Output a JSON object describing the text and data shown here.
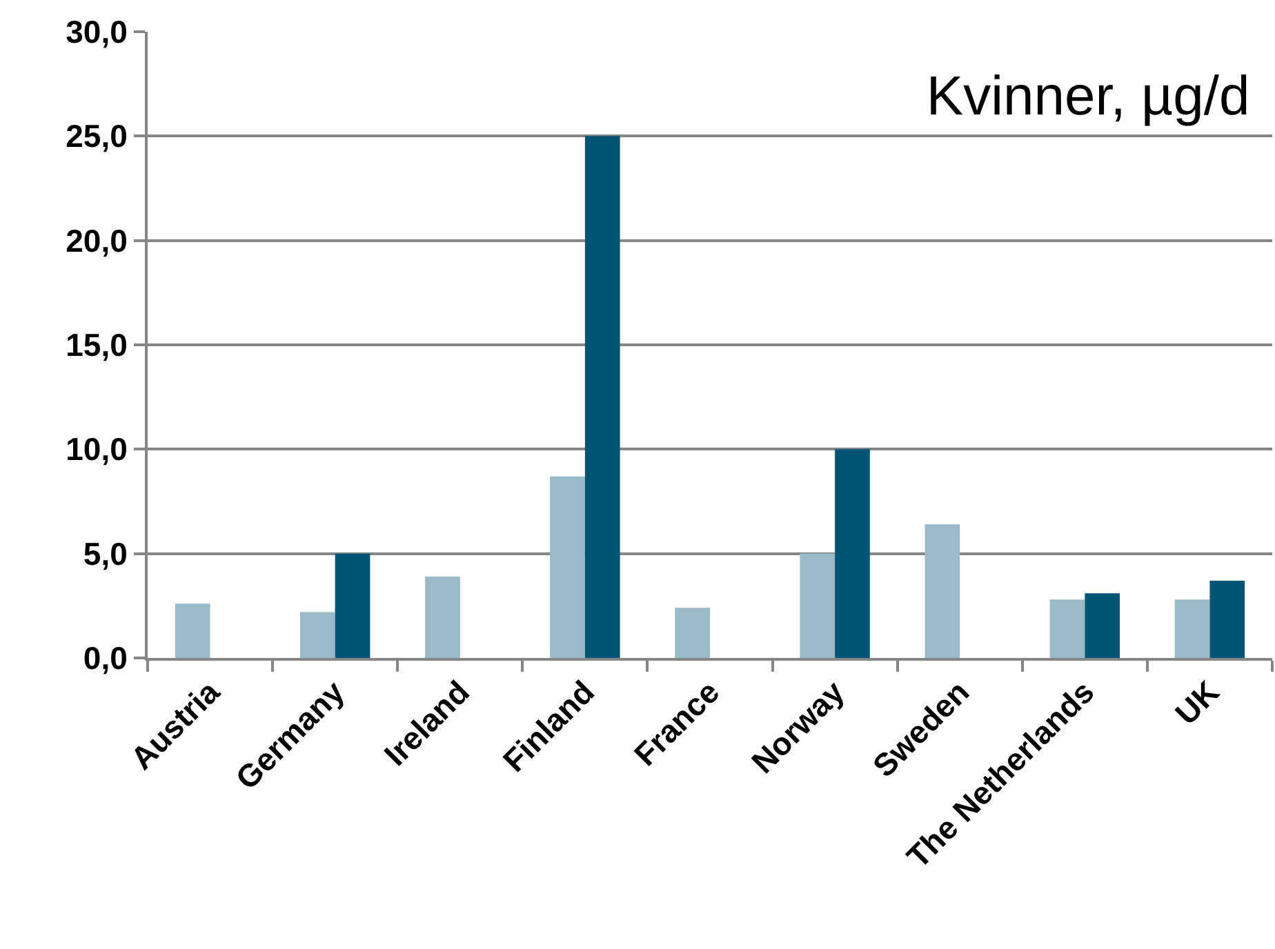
{
  "chart_data": {
    "type": "bar",
    "title": "Kvinner, µg/d",
    "categories": [
      "Austria",
      "Germany",
      "Ireland",
      "Finland",
      "France",
      "Norway",
      "Sweden",
      "The Netherlands",
      "UK"
    ],
    "series": [
      {
        "color": "#9bbac8",
        "values": [
          2.6,
          2.2,
          3.9,
          8.7,
          2.4,
          5.0,
          6.4,
          2.8,
          2.8
        ]
      },
      {
        "color": "#005474",
        "values": [
          null,
          5.0,
          null,
          25.0,
          null,
          10.0,
          null,
          3.1,
          3.7
        ]
      }
    ],
    "ylim": [
      0,
      30
    ],
    "yticks": [
      {
        "value": 0,
        "label": "0,0"
      },
      {
        "value": 5,
        "label": "5,0"
      },
      {
        "value": 10,
        "label": "10,0"
      },
      {
        "value": 15,
        "label": "15,0"
      },
      {
        "value": 20,
        "label": "20,0"
      },
      {
        "value": 25,
        "label": "25,0"
      },
      {
        "value": 30,
        "label": "30,0"
      }
    ],
    "grid": "y"
  }
}
